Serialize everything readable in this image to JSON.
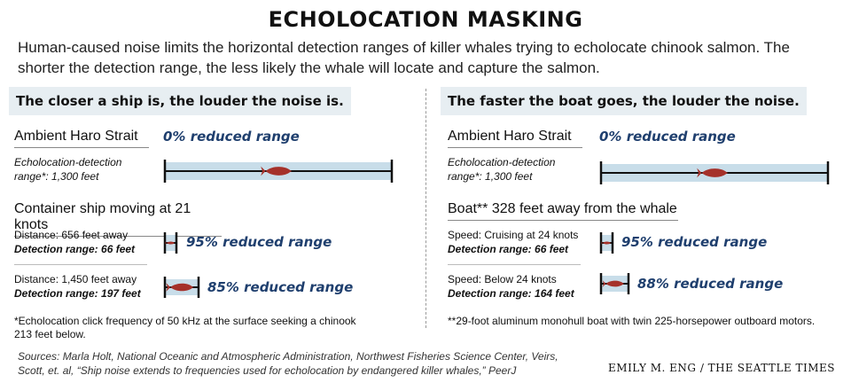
{
  "title": "ECHOLOCATION MASKING",
  "intro": "Human-caused noise limits the horizontal detection ranges of killer whales trying to echolocate chinook salmon. The shorter the detection range, the less likely the whale will locate and capture the salmon.",
  "left": {
    "heading": "The closer a ship is, the louder the noise is.",
    "ambient_label": "Ambient Haro Strait",
    "ambient_reduced": "0% reduced range",
    "ambient_desc": "Echolocation-detection range*: 1,300 feet",
    "ambient_fill": 1.0,
    "scenario_label": "Container ship moving at 21 knots",
    "rows": [
      {
        "distance": "Distance: 656 feet away",
        "range": "Detection range: 66 feet",
        "reduced": "95% reduced range",
        "fill": 0.05
      },
      {
        "distance": "Distance: 1,450 feet away",
        "range": "Detection range: 197 feet",
        "reduced": "85% reduced range",
        "fill": 0.15
      }
    ],
    "footnote": "*Echolocation click frequency of 50 kHz at the surface seeking a chinook 213 feet below."
  },
  "right": {
    "heading": "The faster the boat goes, the louder the noise.",
    "ambient_label": "Ambient Haro Strait",
    "ambient_reduced": "0% reduced range",
    "ambient_desc": "Echolocation-detection range*: 1,300 feet",
    "ambient_fill": 1.0,
    "scenario_label": "Boat** 328 feet away from the whale",
    "rows": [
      {
        "distance": "Speed: Cruising at 24 knots",
        "range": "Detection range: 66 feet",
        "reduced": "95% reduced range",
        "fill": 0.05
      },
      {
        "distance": "Speed: Below 24 knots",
        "range": "Detection range: 164 feet",
        "reduced": "88% reduced range",
        "fill": 0.12
      }
    ],
    "footnote": "**29-foot aluminum monohull boat with twin 225-horsepower outboard motors."
  },
  "sources": "Sources: Marla Holt, National Oceanic and Atmospheric Administration, Northwest Fisheries Science Center, Veirs, Scott, et. al, “Ship noise extends to frequencies used for echolocation by endangered killer whales,” PeerJ",
  "credit": "EMILY M. ENG / THE SEATTLE TIMES",
  "colors": {
    "range_fill": "#c8dde9",
    "salmon": "#a5312a",
    "accent_text": "#1f3f6e",
    "heading_bg": "#e7eef2"
  },
  "icons": [
    "salmon-icon"
  ]
}
